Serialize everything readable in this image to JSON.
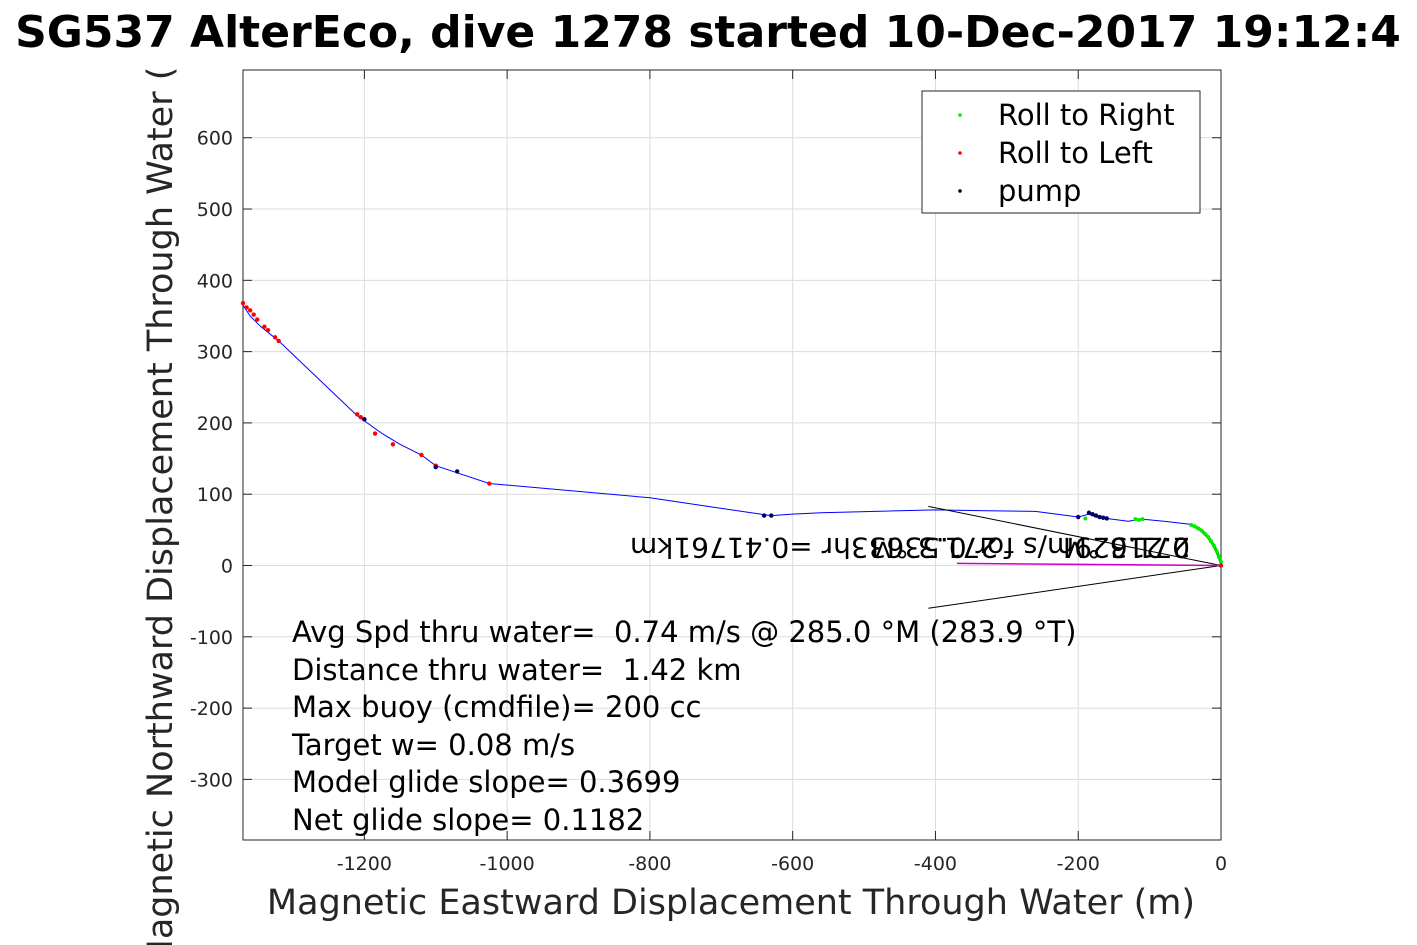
{
  "chart_data": {
    "type": "line",
    "title": "SG537 AlterEco, dive 1278 started 10-Dec-2017 19:12:4",
    "xlabel": "Magnetic Eastward Displacement Through Water (m)",
    "ylabel": "Magnetic Northward Displacement Through Water (",
    "xlim": [
      -1370,
      0
    ],
    "ylim": [
      -385,
      695
    ],
    "xticks": [
      -1200,
      -1000,
      -800,
      -600,
      -400,
      -200,
      0
    ],
    "yticks": [
      -300,
      -200,
      -100,
      0,
      100,
      200,
      300,
      400,
      500,
      600
    ],
    "grid": true,
    "legend_position": "top-right",
    "legend": [
      {
        "name": "Roll to Right",
        "color": "#00ee00"
      },
      {
        "name": "Roll to Left",
        "color": "#ff0000"
      },
      {
        "name": "pump",
        "color": "#000000"
      }
    ],
    "track": {
      "color": "#0000ff",
      "x": [
        0,
        -5,
        -15,
        -30,
        -45,
        -80,
        -110,
        -130,
        -160,
        -175,
        -185,
        -200,
        -260,
        -340,
        -400,
        -560,
        -600,
        -630,
        -645,
        -800,
        -1025,
        -1070,
        -1100,
        -1120,
        -1150,
        -1175,
        -1210,
        -1320,
        -1345,
        -1360,
        -1370
      ],
      "y": [
        0,
        15,
        35,
        50,
        58,
        62,
        65,
        62,
        66,
        68,
        72,
        68,
        76,
        77,
        78,
        74,
        72,
        70,
        72,
        95,
        115,
        130,
        140,
        155,
        170,
        185,
        210,
        315,
        335,
        350,
        365
      ]
    },
    "roll_right": {
      "x": [
        0,
        -3,
        -6,
        -10,
        -14,
        -18,
        -22,
        -27,
        -32,
        -37,
        -42,
        -110,
        -115,
        -120,
        -190
      ],
      "y": [
        5,
        12,
        20,
        28,
        34,
        40,
        44,
        49,
        52,
        55,
        57,
        65,
        64,
        65,
        66
      ]
    },
    "roll_left": {
      "x": [
        0,
        -1025,
        -1100,
        -1120,
        -1160,
        -1185,
        -1200,
        -1205,
        -1210,
        -1320,
        -1325,
        -1335,
        -1340,
        -1350,
        -1355,
        -1360,
        -1365,
        -1370
      ],
      "y": [
        0,
        115,
        140,
        155,
        170,
        185,
        205,
        208,
        212,
        315,
        320,
        330,
        335,
        345,
        352,
        358,
        362,
        368
      ]
    },
    "pump": {
      "x": [
        -180,
        -175,
        -170,
        -165,
        -160,
        -200,
        -185,
        -630,
        -640,
        -1070,
        -1100,
        -1200
      ],
      "y": [
        72,
        70,
        68,
        67,
        66,
        68,
        74,
        70,
        70,
        132,
        138,
        205
      ]
    },
    "annotations": {
      "heading_lines": [
        {
          "x": [
            0,
            -410
          ],
          "y": [
            0,
            83
          ]
        },
        {
          "x": [
            0,
            -410
          ],
          "y": [
            0,
            -60
          ]
        }
      ],
      "mirrored_text_1": "0.21629m/s for 0.53633hr =0.41761km",
      "mirrored_text_2": "271.3 °M",
      "mirrored_text_3": "271.3 °M",
      "magenta_line": {
        "x": [
          0,
          -370
        ],
        "y": [
          0,
          3
        ]
      }
    },
    "stats": [
      "Avg Spd thru water=  0.74 m/s @ 285.0 °M (283.9 °T)",
      "Distance thru water=  1.42 km",
      "Max buoy (cmdfile)= 200 cc",
      "Target w= 0.08 m/s",
      "Model glide slope= 0.3699",
      "Net glide slope= 0.1182"
    ]
  }
}
